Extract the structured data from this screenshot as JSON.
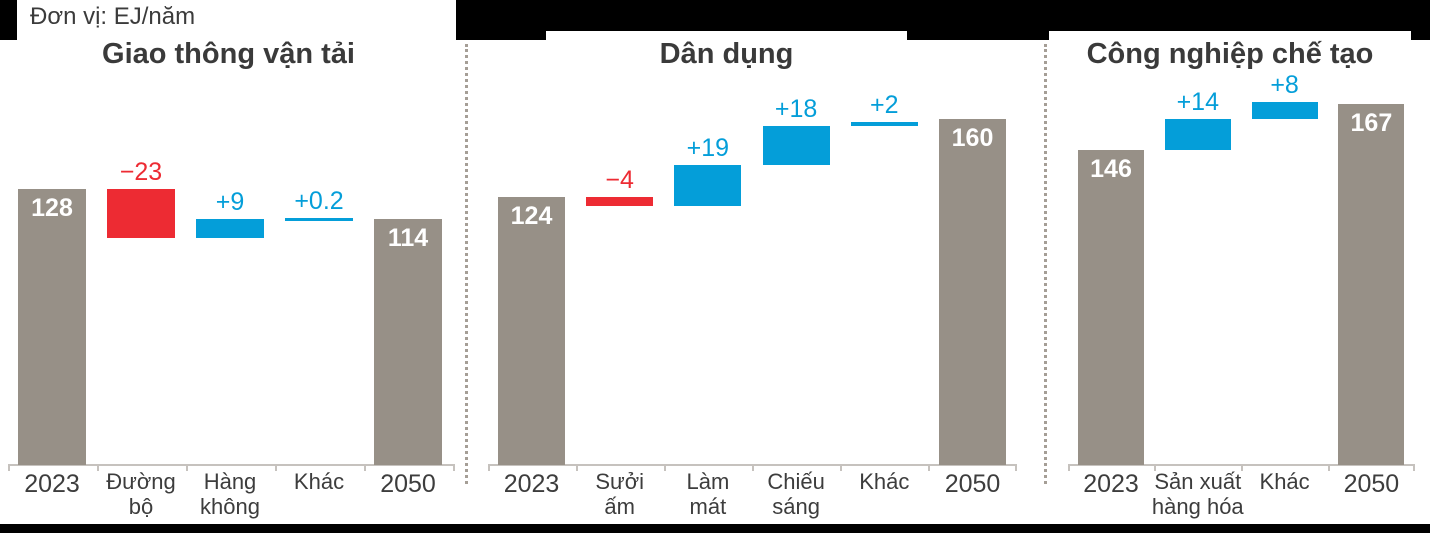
{
  "header": {
    "unit_label": "Đơn vị: EJ/năm"
  },
  "colors": {
    "total_bar": "#979087",
    "increase_bar": "#049ed9",
    "decrease_bar": "#ed2b33",
    "increase_text": "#049ed9",
    "decrease_text": "#ed2b33",
    "title_text": "#3a3a3a",
    "value_text_on_bar": "#ffffff",
    "axis_line": "#c6c2be",
    "top_band": "#000000",
    "separator_dots": "#a59e96"
  },
  "chart_data": [
    {
      "type": "waterfall",
      "title": "Giao thông vận tải",
      "unit": "EJ/năm",
      "categories": [
        "2023",
        "Đường bộ",
        "Hàng không",
        "Khác",
        "2050"
      ],
      "columns": [
        {
          "label": "2023",
          "role": "total",
          "value": 128,
          "display": "128"
        },
        {
          "label": "Đường\nbộ",
          "role": "delta",
          "value": -23,
          "display": "−23"
        },
        {
          "label": "Hàng\nkhông",
          "role": "delta",
          "value": 9,
          "display": "+9"
        },
        {
          "label": "Khác",
          "role": "delta",
          "value": 0.2,
          "display": "+0.2"
        },
        {
          "label": "2050",
          "role": "total",
          "value": 114,
          "display": "114"
        }
      ]
    },
    {
      "type": "waterfall",
      "title": "Dân dụng",
      "unit": "EJ/năm",
      "categories": [
        "2023",
        "Sưởi ấm",
        "Làm mát",
        "Chiếu sáng",
        "Khác",
        "2050"
      ],
      "columns": [
        {
          "label": "2023",
          "role": "total",
          "value": 124,
          "display": "124"
        },
        {
          "label": "Sưởi\nấm",
          "role": "delta",
          "value": -4,
          "display": "−4"
        },
        {
          "label": "Làm\nmát",
          "role": "delta",
          "value": 19,
          "display": "+19"
        },
        {
          "label": "Chiếu\nsáng",
          "role": "delta",
          "value": 18,
          "display": "+18"
        },
        {
          "label": "Khác",
          "role": "delta",
          "value": 2,
          "display": "+2"
        },
        {
          "label": "2050",
          "role": "total",
          "value": 160,
          "display": "160"
        }
      ]
    },
    {
      "type": "waterfall",
      "title": "Công nghiệp chế tạo",
      "unit": "EJ/năm",
      "categories": [
        "2023",
        "Sản xuất hàng hóa",
        "Khác",
        "2050"
      ],
      "columns": [
        {
          "label": "2023",
          "role": "total",
          "value": 146,
          "display": "146"
        },
        {
          "label": "Sản xuất\nhàng hóa",
          "role": "delta",
          "value": 14,
          "display": "+14"
        },
        {
          "label": "Khác",
          "role": "delta",
          "value": 8,
          "display": "+8"
        },
        {
          "label": "2050",
          "role": "total",
          "value": 167,
          "display": "167"
        }
      ]
    }
  ]
}
